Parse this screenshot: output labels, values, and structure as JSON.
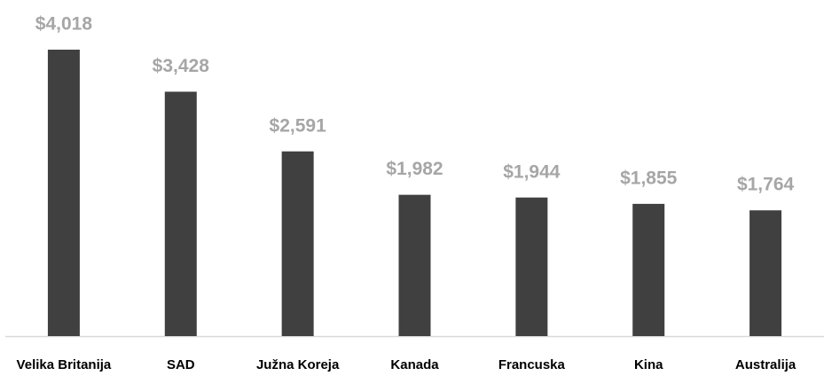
{
  "chart_data": {
    "type": "bar",
    "categories": [
      "Velika Britanija",
      "SAD",
      "Južna Koreja",
      "Kanada",
      "Francuska",
      "Kina",
      "Australija"
    ],
    "values": [
      4018,
      3428,
      2591,
      1982,
      1944,
      1855,
      1764
    ],
    "value_labels": [
      "$4,018",
      "$3,428",
      "$2,591",
      "$1,982",
      "$1,944",
      "$1,855",
      "$1,764"
    ],
    "color": "#404040"
  }
}
